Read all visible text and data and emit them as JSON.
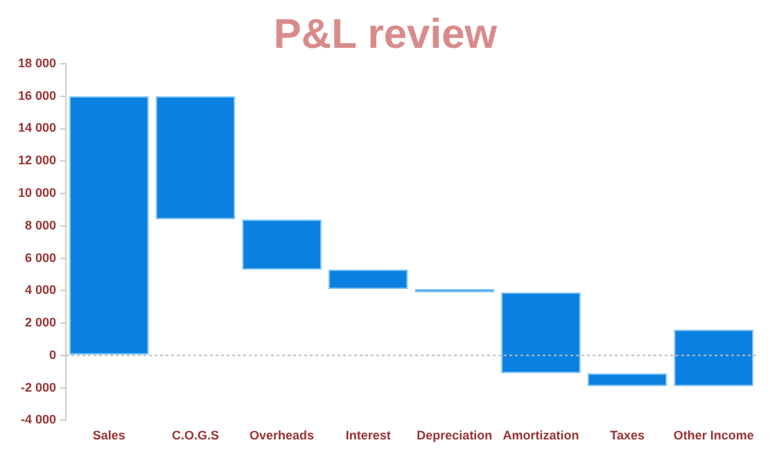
{
  "chart_data": {
    "type": "bar",
    "title": "P&L review",
    "categories": [
      "Sales",
      "C.O.G.S",
      "Overheads",
      "Interest",
      "Depreciation",
      "Amortization",
      "Taxes",
      "Other Income"
    ],
    "base": [
      0,
      16000,
      8400,
      5300,
      4100,
      3900,
      -1100,
      -1900
    ],
    "values": [
      16000,
      -7600,
      -3100,
      -1200,
      -200,
      -5000,
      -800,
      3500
    ],
    "color": "#0a80e0",
    "ylim": [
      -4000,
      18000
    ],
    "yticks": [
      {
        "value": -4000,
        "label": "-4 000"
      },
      {
        "value": -2000,
        "label": "-2 000"
      },
      0,
      {
        "value": 2000,
        "label": "2 000"
      },
      {
        "value": 4000,
        "label": "4 000"
      },
      {
        "value": 6000,
        "label": "6 000"
      },
      {
        "value": 8000,
        "label": "8 000"
      },
      {
        "value": 10000,
        "label": "10 000"
      },
      {
        "value": 12000,
        "label": "12 000"
      },
      {
        "value": 14000,
        "label": "14 000"
      },
      {
        "value": 16000,
        "label": "16 000"
      },
      {
        "value": 18000,
        "label": "18 000"
      }
    ],
    "ref_lines": [
      {
        "axis": "y",
        "value": 0,
        "color": "#bbbbbb",
        "line_style": "dotted"
      }
    ],
    "grid": false,
    "legend": false
  }
}
